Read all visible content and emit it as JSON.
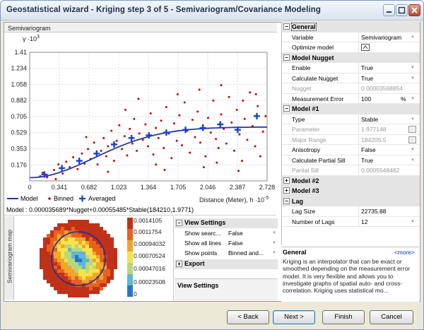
{
  "window": {
    "title": "Geostatistical wizard - Kriging step 3 of 5 - Semivariogram/Covariance Modeling"
  },
  "semivariogram": {
    "panel_label": "Semivariogram",
    "y_axis_label": "γ ·10",
    "y_axis_exp": "3",
    "x_axis_label": "Distance (Meter), h ·10",
    "x_axis_exp": "-5",
    "legend": {
      "model": "Model",
      "binned": "Binned",
      "averaged": "Averaged"
    },
    "model_formula": "Model : 0.000035689*Nugget+0.00055485*Stable(184210,1.9771)"
  },
  "chart_data": {
    "type": "scatter",
    "title": "",
    "xlabel": "Distance (Meter), h ·10-5",
    "ylabel": "γ ·10 3",
    "x_ticks": [
      "0",
      "0.341",
      "0.682",
      "1.023",
      "1.364",
      "1.705",
      "2.046",
      "2.387",
      "2.728"
    ],
    "y_ticks": [
      "0.176",
      "0.353",
      "0.529",
      "0.705",
      "0.882",
      "1.058",
      "1.234",
      "1.41"
    ],
    "xlim": [
      0,
      2.728
    ],
    "ylim": [
      0,
      1.41
    ],
    "model": {
      "nugget": 0.0357,
      "sill": 0.555,
      "range": 1.842,
      "power": 1.9771
    },
    "averaged": [
      {
        "x": 0.17,
        "y": 0.07
      },
      {
        "x": 0.37,
        "y": 0.14
      },
      {
        "x": 0.57,
        "y": 0.22
      },
      {
        "x": 0.77,
        "y": 0.3
      },
      {
        "x": 0.97,
        "y": 0.4
      },
      {
        "x": 1.17,
        "y": 0.47
      },
      {
        "x": 1.37,
        "y": 0.5
      },
      {
        "x": 1.57,
        "y": 0.53
      },
      {
        "x": 1.79,
        "y": 0.56
      },
      {
        "x": 1.99,
        "y": 0.58
      },
      {
        "x": 2.19,
        "y": 0.62
      },
      {
        "x": 2.39,
        "y": 0.56
      },
      {
        "x": 2.61,
        "y": 0.71
      }
    ],
    "binned": [
      {
        "x": 0.12,
        "y": 0.05
      },
      {
        "x": 0.15,
        "y": 0.09
      },
      {
        "x": 0.2,
        "y": 0.04
      },
      {
        "x": 0.28,
        "y": 0.12
      },
      {
        "x": 0.33,
        "y": 0.18
      },
      {
        "x": 0.38,
        "y": 0.08
      },
      {
        "x": 0.42,
        "y": 0.21
      },
      {
        "x": 0.46,
        "y": 0.15
      },
      {
        "x": 0.5,
        "y": 0.26
      },
      {
        "x": 0.55,
        "y": 0.13
      },
      {
        "x": 0.6,
        "y": 0.3
      },
      {
        "x": 0.63,
        "y": 0.19
      },
      {
        "x": 0.67,
        "y": 0.35
      },
      {
        "x": 0.7,
        "y": 0.24
      },
      {
        "x": 0.74,
        "y": 0.42
      },
      {
        "x": 0.78,
        "y": 0.18
      },
      {
        "x": 0.82,
        "y": 0.33
      },
      {
        "x": 0.85,
        "y": 0.47
      },
      {
        "x": 0.88,
        "y": 0.27
      },
      {
        "x": 0.9,
        "y": 0.38
      },
      {
        "x": 0.94,
        "y": 0.55
      },
      {
        "x": 0.97,
        "y": 0.22
      },
      {
        "x": 1.0,
        "y": 0.44
      },
      {
        "x": 1.03,
        "y": 0.61
      },
      {
        "x": 1.06,
        "y": 0.35
      },
      {
        "x": 1.09,
        "y": 0.49
      },
      {
        "x": 1.12,
        "y": 0.28
      },
      {
        "x": 1.15,
        "y": 0.57
      },
      {
        "x": 1.18,
        "y": 0.41
      },
      {
        "x": 1.2,
        "y": 0.68
      },
      {
        "x": 1.23,
        "y": 0.33
      },
      {
        "x": 1.26,
        "y": 0.52
      },
      {
        "x": 1.3,
        "y": 0.45
      },
      {
        "x": 1.33,
        "y": 0.62
      },
      {
        "x": 1.36,
        "y": 0.38
      },
      {
        "x": 1.39,
        "y": 0.74
      },
      {
        "x": 1.42,
        "y": 0.29
      },
      {
        "x": 1.45,
        "y": 0.58
      },
      {
        "x": 1.48,
        "y": 0.47
      },
      {
        "x": 1.51,
        "y": 0.66
      },
      {
        "x": 1.54,
        "y": 0.36
      },
      {
        "x": 1.57,
        "y": 0.81
      },
      {
        "x": 1.6,
        "y": 0.52
      },
      {
        "x": 1.63,
        "y": 0.25
      },
      {
        "x": 1.66,
        "y": 0.63
      },
      {
        "x": 1.69,
        "y": 0.44
      },
      {
        "x": 1.72,
        "y": 0.72
      },
      {
        "x": 1.75,
        "y": 0.39
      },
      {
        "x": 1.78,
        "y": 0.86
      },
      {
        "x": 1.81,
        "y": 0.55
      },
      {
        "x": 1.84,
        "y": 0.31
      },
      {
        "x": 1.87,
        "y": 0.67
      },
      {
        "x": 1.9,
        "y": 0.48
      },
      {
        "x": 1.93,
        "y": 0.76
      },
      {
        "x": 1.96,
        "y": 0.42
      },
      {
        "x": 1.99,
        "y": 0.61
      },
      {
        "x": 2.02,
        "y": 0.27
      },
      {
        "x": 2.05,
        "y": 0.69
      },
      {
        "x": 2.08,
        "y": 0.53
      },
      {
        "x": 2.11,
        "y": 0.88
      },
      {
        "x": 2.14,
        "y": 0.46
      },
      {
        "x": 2.17,
        "y": 0.36
      },
      {
        "x": 2.2,
        "y": 0.73
      },
      {
        "x": 2.23,
        "y": 0.57
      },
      {
        "x": 2.26,
        "y": 0.41
      },
      {
        "x": 2.29,
        "y": 0.92
      },
      {
        "x": 2.32,
        "y": 0.64
      },
      {
        "x": 2.35,
        "y": 0.33
      },
      {
        "x": 2.38,
        "y": 0.78
      },
      {
        "x": 2.41,
        "y": 0.51
      },
      {
        "x": 2.44,
        "y": 0.22
      },
      {
        "x": 2.47,
        "y": 0.68
      },
      {
        "x": 2.5,
        "y": 0.45
      },
      {
        "x": 2.53,
        "y": 0.97
      },
      {
        "x": 2.56,
        "y": 0.6
      },
      {
        "x": 2.59,
        "y": 0.38
      },
      {
        "x": 2.62,
        "y": 0.82
      },
      {
        "x": 2.65,
        "y": 0.27
      },
      {
        "x": 2.68,
        "y": 0.54
      },
      {
        "x": 2.71,
        "y": 0.71
      },
      {
        "x": 0.3,
        "y": 0.02
      },
      {
        "x": 0.9,
        "y": 0.1
      },
      {
        "x": 1.55,
        "y": 0.12
      },
      {
        "x": 2.0,
        "y": 0.15
      },
      {
        "x": 2.4,
        "y": 0.11
      },
      {
        "x": 1.25,
        "y": 0.9
      },
      {
        "x": 1.95,
        "y": 1.0
      },
      {
        "x": 2.2,
        "y": 1.05
      },
      {
        "x": 1.1,
        "y": 0.78
      },
      {
        "x": 2.6,
        "y": 0.95
      },
      {
        "x": 0.65,
        "y": 0.48
      },
      {
        "x": 1.45,
        "y": 0.18
      },
      {
        "x": 1.7,
        "y": 0.95
      },
      {
        "x": 2.15,
        "y": 0.2
      },
      {
        "x": 2.45,
        "y": 0.88
      }
    ]
  },
  "map": {
    "panel_label": "Semivariogram map",
    "legend_values": [
      "0.0014105",
      "0.0011754",
      "0.00094032",
      "0.00070524",
      "0.00047016",
      "0.00023508",
      "0"
    ],
    "legend_colors": [
      "#c0311a",
      "#e8621c",
      "#f3a52b",
      "#f5e34a",
      "#b9d77a",
      "#5fb6d6",
      "#2478c8"
    ]
  },
  "view_settings": {
    "group_label": "View Settings",
    "rows": [
      {
        "label": "Show searc...",
        "value": "False"
      },
      {
        "label": "Show all lines",
        "value": "False"
      },
      {
        "label": "Show points",
        "value": "Binned and..."
      }
    ],
    "export_label": "Export",
    "footer_label": "View Settings"
  },
  "properties": {
    "general": {
      "label": "General",
      "rows": [
        {
          "label": "Variable",
          "value": "Semivariogram"
        },
        {
          "label": "Optimize model",
          "value": ""
        }
      ]
    },
    "nugget": {
      "label": "Model Nugget",
      "rows": [
        {
          "label": "Enable",
          "value": "True"
        },
        {
          "label": "Calculate Nugget",
          "value": "True"
        },
        {
          "label": "Nugget",
          "value": "0.00003568854"
        },
        {
          "label": "Measurement Error",
          "value": "100",
          "unit": "%"
        }
      ]
    },
    "model1": {
      "label": "Model #1",
      "rows": [
        {
          "label": "Type",
          "value": "Stable"
        },
        {
          "label": "Parameter",
          "value": "1.977148"
        },
        {
          "label": "Major Range",
          "value": "184205.5"
        },
        {
          "label": "Anisotropy",
          "value": "False"
        },
        {
          "label": "Calculate Partial Sill",
          "value": "True"
        },
        {
          "label": "Partial Sill",
          "value": "0.0005548482"
        }
      ]
    },
    "model2": {
      "label": "Model #2"
    },
    "model3": {
      "label": "Model #3"
    },
    "lag": {
      "label": "Lag",
      "rows": [
        {
          "label": "Lag Size",
          "value": "22735.88"
        },
        {
          "label": "Number of Lags",
          "value": "12"
        }
      ]
    }
  },
  "help": {
    "title": "General",
    "more": "<more>",
    "text": "Kriging is an interpolator that can be exact or smoothed depending on the measurement error model. It is very flexible and allows you to investigate graphs of spatial auto- and cross-correlation. Kriging uses statistical mo..."
  },
  "buttons": {
    "back": "< Back",
    "next": "Next >",
    "finish": "Finish",
    "cancel": "Cancel"
  },
  "colors": {
    "model_line": "#1f3aa6",
    "binned": "#cc0000",
    "averaged": "#1a3fd8"
  }
}
